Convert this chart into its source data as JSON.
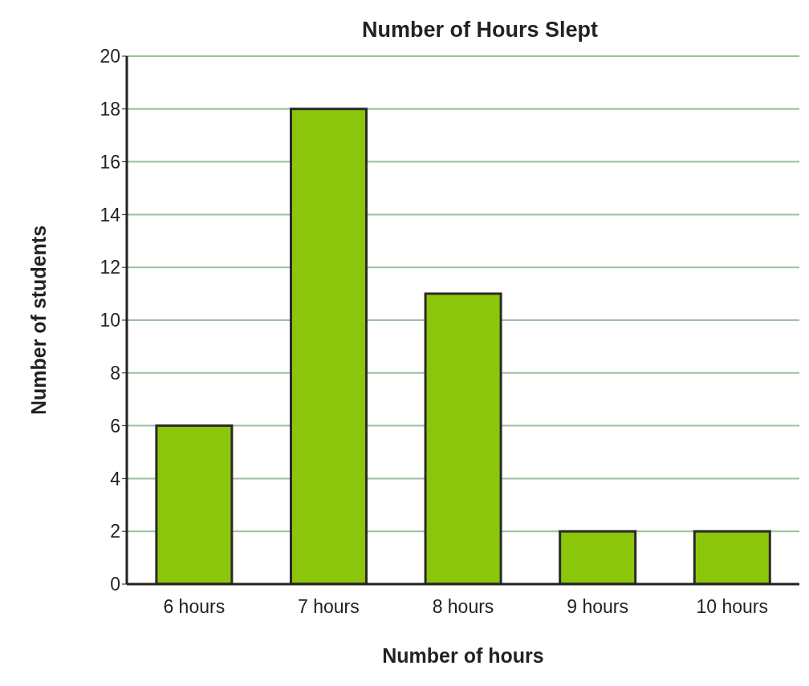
{
  "chart_data": {
    "type": "bar",
    "title": "Number of Hours Slept",
    "xlabel": "Number of hours",
    "ylabel": "Number of students",
    "categories": [
      "6 hours",
      "7 hours",
      "8 hours",
      "9 hours",
      "10 hours"
    ],
    "values": [
      6,
      18,
      11,
      2,
      2
    ],
    "color": "#8cc60a",
    "ylim": [
      0,
      20
    ],
    "yticks": [
      0,
      2,
      4,
      6,
      8,
      10,
      12,
      14,
      16,
      18,
      20
    ],
    "grid": "y"
  }
}
